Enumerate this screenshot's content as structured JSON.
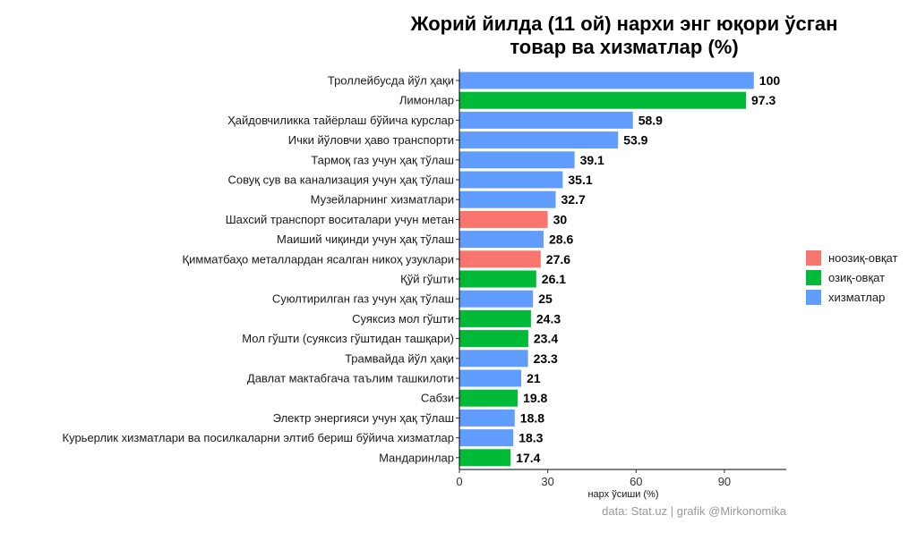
{
  "chart_data": {
    "type": "bar",
    "orientation": "horizontal",
    "title": [
      "Жорий йилда (11 ой) нархи энг юқори ўсган",
      "товар ва хизматлар (%)"
    ],
    "xlabel": "нарх ўсиши (%)",
    "ylabel": "",
    "xlim": [
      0,
      111
    ],
    "xticks": [
      0,
      30,
      60,
      90
    ],
    "xtick_labels": [
      "0",
      "30",
      "60",
      "90"
    ],
    "caption": "data:  Stat.uz | grafik @Mirkonomika",
    "grid": false,
    "legend_position": "right",
    "legend": [
      {
        "key": "noozik",
        "label": "ноозиқ-овқат",
        "color": "#F8766D"
      },
      {
        "key": "ozik",
        "label": "озиқ-овқат",
        "color": "#00BA38"
      },
      {
        "key": "xizmat",
        "label": "хизматлар",
        "color": "#619CFF"
      }
    ],
    "bars": [
      {
        "category": "Троллейбусда йўл ҳақи",
        "value": 100,
        "label": "100",
        "group": "xizmat"
      },
      {
        "category": "Лимонлар",
        "value": 97.3,
        "label": "97.3",
        "group": "ozik"
      },
      {
        "category": "Ҳайдовчиликка тайёрлаш бўйича курслар",
        "value": 58.9,
        "label": "58.9",
        "group": "xizmat"
      },
      {
        "category": "Ички йўловчи ҳаво транспорти",
        "value": 53.9,
        "label": "53.9",
        "group": "xizmat"
      },
      {
        "category": "Тармоқ газ учун ҳақ тўлаш",
        "value": 39.1,
        "label": "39.1",
        "group": "xizmat"
      },
      {
        "category": "Совуқ сув ва канализация учун ҳақ тўлаш",
        "value": 35.1,
        "label": "35.1",
        "group": "xizmat"
      },
      {
        "category": "Музейларнинг хизматлари",
        "value": 32.7,
        "label": "32.7",
        "group": "xizmat"
      },
      {
        "category": "Шахсий транспорт воситалари учун метан",
        "value": 30,
        "label": "30",
        "group": "noozik"
      },
      {
        "category": "Маиший чиқинди учун ҳақ тўлаш",
        "value": 28.6,
        "label": "28.6",
        "group": "xizmat"
      },
      {
        "category": "Қимматбаҳо металлардан ясалган никоҳ узуклари",
        "value": 27.6,
        "label": "27.6",
        "group": "noozik"
      },
      {
        "category": "Қўй гўшти",
        "value": 26.1,
        "label": "26.1",
        "group": "ozik"
      },
      {
        "category": "Суюлтирилган газ учун ҳақ тўлаш",
        "value": 25,
        "label": "25",
        "group": "xizmat"
      },
      {
        "category": "Суяксиз мол гўшти",
        "value": 24.3,
        "label": "24.3",
        "group": "ozik"
      },
      {
        "category": "Мол гўшти (суяксиз гўштидан ташқари)",
        "value": 23.4,
        "label": "23.4",
        "group": "ozik"
      },
      {
        "category": "Трамвайда йўл ҳақи",
        "value": 23.3,
        "label": "23.3",
        "group": "xizmat"
      },
      {
        "category": "Давлат мактабгача таълим ташкилоти",
        "value": 21,
        "label": "21",
        "group": "xizmat"
      },
      {
        "category": "Сабзи",
        "value": 19.8,
        "label": "19.8",
        "group": "ozik"
      },
      {
        "category": "Электр энергияси учун ҳақ тўлаш",
        "value": 18.8,
        "label": "18.8",
        "group": "xizmat"
      },
      {
        "category": "Курьерлик хизматлари ва посилкаларни элтиб бериш бўйича хизматлар",
        "value": 18.3,
        "label": "18.3",
        "group": "xizmat"
      },
      {
        "category": "Мандаринлар",
        "value": 17.4,
        "label": "17.4",
        "group": "ozik"
      }
    ]
  }
}
